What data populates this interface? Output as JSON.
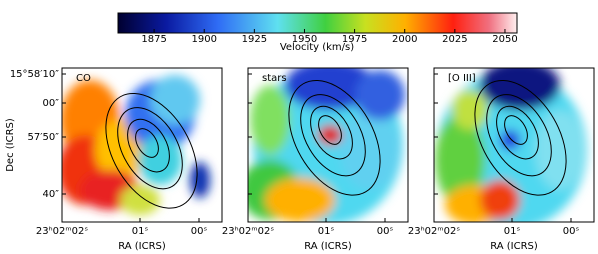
{
  "colorbar": {
    "label": "Velocity (km/s)",
    "lim": [
      1857,
      2056
    ],
    "ticks": [
      1875,
      1900,
      1925,
      1950,
      1975,
      2000,
      2025,
      2050
    ]
  },
  "panels": [
    {
      "label": "CO"
    },
    {
      "label": "stars"
    },
    {
      "label": "[O III]"
    }
  ],
  "x_axis": {
    "label": "RA (ICRS)",
    "ticks": [
      "23ʰ02ᵐ02ˢ",
      "01ˢ",
      "00ˢ"
    ]
  },
  "y_axis": {
    "label": "Dec (ICRS)",
    "ticks": [
      "15°58′10″",
      "00″",
      "57′50″",
      "40″"
    ]
  }
}
